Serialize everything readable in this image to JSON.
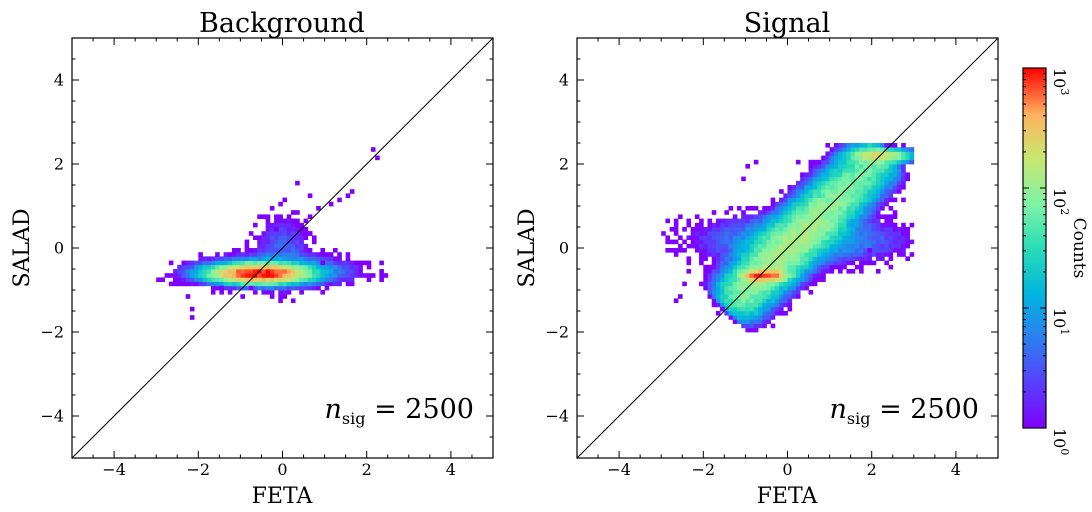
{
  "figure": {
    "colorbar": {
      "label": "Counts",
      "scale": "log",
      "range": [
        1,
        1000
      ],
      "tick_labels": [
        "10^0",
        "10^1",
        "10^2",
        "10^3"
      ],
      "colormap": "rainbow"
    }
  },
  "chart_data": [
    {
      "type": "heatmap",
      "title": "Background",
      "xlabel": "FETA",
      "ylabel": "SALAD",
      "xlim": [
        -5,
        5
      ],
      "ylim": [
        -5,
        5
      ],
      "xticks": [
        -4,
        -2,
        0,
        2,
        4
      ],
      "yticks": [
        -4,
        -2,
        0,
        2,
        4
      ],
      "xtick_labels": [
        "−4",
        "−2",
        "0",
        "2",
        "4"
      ],
      "ytick_labels": [
        "−4",
        "−2",
        "0",
        "2",
        "4"
      ],
      "diagonal_line": true,
      "annotation": "n_sig = 2500",
      "annotation_position": "bottom-right",
      "bin_width": 0.1,
      "blobs": [
        {
          "cx": -0.55,
          "cy": -0.6,
          "sx": 0.5,
          "sy": 0.1,
          "peak": 1000
        },
        {
          "cx": -0.3,
          "cy": -0.55,
          "sx": 0.9,
          "sy": 0.18,
          "peak": 25
        },
        {
          "cx": 0.0,
          "cy": -0.1,
          "sx": 0.35,
          "sy": 0.5,
          "peak": 4
        }
      ],
      "scatter_bins": [
        [
          2.1,
          2.3
        ],
        [
          2.2,
          2.1
        ],
        [
          1.6,
          1.3
        ],
        [
          1.5,
          1.2
        ],
        [
          1.3,
          1.1
        ],
        [
          1.1,
          1.0
        ],
        [
          0.3,
          1.5
        ],
        [
          0.6,
          1.2
        ],
        [
          0.8,
          0.9
        ],
        [
          0.4,
          0.4
        ],
        [
          0.6,
          0.3
        ],
        [
          -0.8,
          -1.0
        ],
        [
          -1.0,
          -1.2
        ],
        [
          -2.3,
          -1.2
        ],
        [
          -2.2,
          -1.5
        ],
        [
          -2.2,
          -1.7
        ],
        [
          -1.5,
          -1.0
        ],
        [
          -1.3,
          -1.1
        ],
        [
          -0.9,
          0.1
        ],
        [
          -0.2,
          0.4
        ],
        [
          0.2,
          0.6
        ],
        [
          0.9,
          -0.4
        ]
      ]
    },
    {
      "type": "heatmap",
      "title": "Signal",
      "xlabel": "FETA",
      "ylabel": "SALAD",
      "xlim": [
        -5,
        5
      ],
      "ylim": [
        -5,
        5
      ],
      "xticks": [
        -4,
        -2,
        0,
        2,
        4
      ],
      "yticks": [
        -4,
        -2,
        0,
        2,
        4
      ],
      "xtick_labels": [
        "−4",
        "−2",
        "0",
        "2",
        "4"
      ],
      "ytick_labels": [
        "−4",
        "−2",
        "0",
        "2",
        "4"
      ],
      "diagonal_line": true,
      "annotation": "n_sig = 2500",
      "annotation_position": "bottom-right",
      "bin_width": 0.1,
      "band": {
        "u_min": -1.3,
        "u_max": 2.3,
        "perp_sigma": 0.32,
        "offset": 0.0,
        "peak": 120
      },
      "blobs": [
        {
          "cx": -0.55,
          "cy": -0.65,
          "sx": 0.25,
          "sy": 0.07,
          "peak": 800
        },
        {
          "cx": 2.2,
          "cy": 2.2,
          "sx": 0.35,
          "sy": 0.08,
          "peak": 200
        },
        {
          "cx": 0.3,
          "cy": 0.2,
          "sx": 1.2,
          "sy": 0.3,
          "peak": 12
        }
      ],
      "scatter_bins": [
        [
          -2.4,
          -0.6
        ],
        [
          -2.5,
          -0.9
        ],
        [
          -2.7,
          -1.3
        ],
        [
          -2.6,
          -1.2
        ],
        [
          -1.8,
          -1.4
        ],
        [
          -1.0,
          1.9
        ],
        [
          -1.1,
          1.6
        ],
        [
          -0.8,
          2.0
        ],
        [
          1.7,
          -0.6
        ],
        [
          2.1,
          -0.6
        ],
        [
          2.3,
          -0.4
        ],
        [
          1.9,
          -0.1
        ],
        [
          0.8,
          -0.8
        ],
        [
          -1.6,
          -1.5
        ],
        [
          -1.7,
          -1.6
        ],
        [
          0.2,
          2.0
        ],
        [
          2.5,
          0.5
        ]
      ]
    }
  ]
}
